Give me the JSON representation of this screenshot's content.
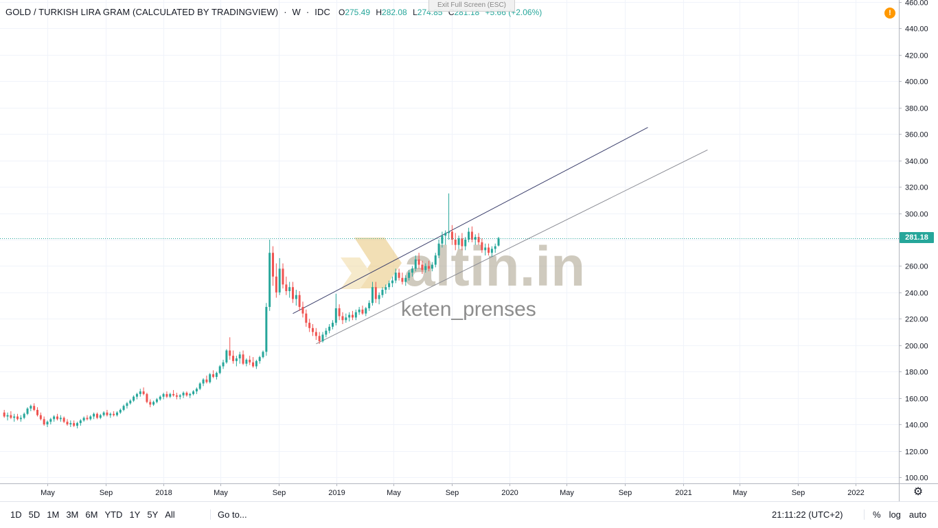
{
  "legend": {
    "symbol": "GOLD / TURKISH LIRA GRAM (CALCULATED BY TRADINGVIEW)",
    "interval": "W",
    "source": "IDC",
    "open_key": "O",
    "open": "275.49",
    "high_key": "H",
    "high": "282.08",
    "low_key": "L",
    "low": "274.85",
    "close_key": "C",
    "close": "281.18",
    "change": "+5.66 (+2.06%)"
  },
  "exit_fullscreen": "Exit Full Screen (ESC)",
  "alert_icon_char": "!",
  "watermark": {
    "brand": "altin.in",
    "user": "keten_prenses"
  },
  "last_price_label": "281.18",
  "colors": {
    "up": "#26a69a",
    "down": "#ef5350",
    "grid": "#f0f3fa",
    "axis": "#b2b5be"
  },
  "bottom": {
    "ranges": [
      "1D",
      "5D",
      "1M",
      "3M",
      "6M",
      "YTD",
      "1Y",
      "5Y",
      "All"
    ],
    "goto": "Go to...",
    "clock": "21:11:22 (UTC+2)",
    "options": [
      "%",
      "log",
      "auto"
    ]
  },
  "chart_data": {
    "type": "candlestick",
    "title": "GOLD / TURKISH LIRA GRAM (CALCULATED BY TRADINGVIEW)",
    "interval": "W",
    "ylim": [
      100,
      460
    ],
    "y_ticks": [
      100,
      120,
      140,
      160,
      180,
      200,
      220,
      240,
      260,
      280,
      300,
      320,
      340,
      360,
      380,
      400,
      420,
      440,
      460
    ],
    "y_tick_labels": [
      "100.00",
      "120.00",
      "140.00",
      "160.00",
      "180.00",
      "200.00",
      "220.00",
      "240.00",
      "260.00",
      "280.00",
      "300.00",
      "320.00",
      "340.00",
      "360.00",
      "380.00",
      "400.00",
      "420.00",
      "440.00",
      "460.00"
    ],
    "x_tick_labels": [
      "May",
      "Sep",
      "2018",
      "May",
      "Sep",
      "2019",
      "May",
      "Sep",
      "2020",
      "May",
      "Sep",
      "2021",
      "May",
      "Sep",
      "2022"
    ],
    "x_tick_dates": [
      "2017-05-01",
      "2017-09-01",
      "2018-01-01",
      "2018-05-01",
      "2018-09-01",
      "2019-01-01",
      "2019-05-01",
      "2019-09-01",
      "2020-01-01",
      "2020-05-01",
      "2020-09-01",
      "2021-01-01",
      "2021-05-01",
      "2021-09-01",
      "2022-01-01"
    ],
    "last_price": 281.18,
    "candles": [
      {
        "d": "2017-01-30",
        "o": 149,
        "h": 151,
        "l": 145,
        "c": 146
      },
      {
        "d": "2017-02-06",
        "o": 146,
        "h": 149,
        "l": 143,
        "c": 147
      },
      {
        "d": "2017-02-13",
        "o": 147,
        "h": 150,
        "l": 144,
        "c": 145
      },
      {
        "d": "2017-02-20",
        "o": 145,
        "h": 148,
        "l": 142,
        "c": 146
      },
      {
        "d": "2017-02-27",
        "o": 146,
        "h": 148,
        "l": 143,
        "c": 144
      },
      {
        "d": "2017-03-06",
        "o": 144,
        "h": 147,
        "l": 142,
        "c": 145
      },
      {
        "d": "2017-03-13",
        "o": 145,
        "h": 149,
        "l": 144,
        "c": 148
      },
      {
        "d": "2017-03-20",
        "o": 148,
        "h": 153,
        "l": 147,
        "c": 152
      },
      {
        "d": "2017-03-27",
        "o": 152,
        "h": 155,
        "l": 150,
        "c": 154
      },
      {
        "d": "2017-04-03",
        "o": 154,
        "h": 156,
        "l": 150,
        "c": 151
      },
      {
        "d": "2017-04-10",
        "o": 151,
        "h": 153,
        "l": 146,
        "c": 147
      },
      {
        "d": "2017-04-17",
        "o": 147,
        "h": 149,
        "l": 143,
        "c": 144
      },
      {
        "d": "2017-04-24",
        "o": 144,
        "h": 146,
        "l": 139,
        "c": 140
      },
      {
        "d": "2017-05-01",
        "o": 140,
        "h": 143,
        "l": 138,
        "c": 142
      },
      {
        "d": "2017-05-08",
        "o": 142,
        "h": 145,
        "l": 140,
        "c": 144
      },
      {
        "d": "2017-05-15",
        "o": 144,
        "h": 147,
        "l": 142,
        "c": 146
      },
      {
        "d": "2017-05-22",
        "o": 146,
        "h": 148,
        "l": 143,
        "c": 144
      },
      {
        "d": "2017-05-29",
        "o": 144,
        "h": 147,
        "l": 142,
        "c": 145
      },
      {
        "d": "2017-06-05",
        "o": 145,
        "h": 146,
        "l": 141,
        "c": 142
      },
      {
        "d": "2017-06-12",
        "o": 142,
        "h": 144,
        "l": 139,
        "c": 140
      },
      {
        "d": "2017-06-19",
        "o": 140,
        "h": 143,
        "l": 138,
        "c": 141
      },
      {
        "d": "2017-06-26",
        "o": 141,
        "h": 143,
        "l": 138,
        "c": 139
      },
      {
        "d": "2017-07-03",
        "o": 139,
        "h": 142,
        "l": 137,
        "c": 141
      },
      {
        "d": "2017-07-10",
        "o": 141,
        "h": 144,
        "l": 139,
        "c": 143
      },
      {
        "d": "2017-07-17",
        "o": 143,
        "h": 146,
        "l": 142,
        "c": 145
      },
      {
        "d": "2017-07-24",
        "o": 145,
        "h": 147,
        "l": 143,
        "c": 144
      },
      {
        "d": "2017-07-31",
        "o": 144,
        "h": 147,
        "l": 143,
        "c": 146
      },
      {
        "d": "2017-08-07",
        "o": 146,
        "h": 149,
        "l": 144,
        "c": 148
      },
      {
        "d": "2017-08-14",
        "o": 148,
        "h": 149,
        "l": 144,
        "c": 145
      },
      {
        "d": "2017-08-21",
        "o": 145,
        "h": 148,
        "l": 144,
        "c": 147
      },
      {
        "d": "2017-08-28",
        "o": 147,
        "h": 150,
        "l": 146,
        "c": 149
      },
      {
        "d": "2017-09-04",
        "o": 149,
        "h": 151,
        "l": 146,
        "c": 147
      },
      {
        "d": "2017-09-11",
        "o": 147,
        "h": 149,
        "l": 145,
        "c": 148
      },
      {
        "d": "2017-09-18",
        "o": 148,
        "h": 150,
        "l": 146,
        "c": 147
      },
      {
        "d": "2017-09-25",
        "o": 147,
        "h": 150,
        "l": 146,
        "c": 149
      },
      {
        "d": "2017-10-02",
        "o": 149,
        "h": 152,
        "l": 148,
        "c": 151
      },
      {
        "d": "2017-10-09",
        "o": 151,
        "h": 155,
        "l": 150,
        "c": 154
      },
      {
        "d": "2017-10-16",
        "o": 154,
        "h": 157,
        "l": 152,
        "c": 156
      },
      {
        "d": "2017-10-23",
        "o": 156,
        "h": 159,
        "l": 155,
        "c": 158
      },
      {
        "d": "2017-10-30",
        "o": 158,
        "h": 162,
        "l": 157,
        "c": 161
      },
      {
        "d": "2017-11-06",
        "o": 161,
        "h": 164,
        "l": 159,
        "c": 163
      },
      {
        "d": "2017-11-13",
        "o": 163,
        "h": 167,
        "l": 161,
        "c": 165
      },
      {
        "d": "2017-11-20",
        "o": 165,
        "h": 168,
        "l": 162,
        "c": 163
      },
      {
        "d": "2017-11-27",
        "o": 163,
        "h": 164,
        "l": 156,
        "c": 157
      },
      {
        "d": "2017-12-04",
        "o": 157,
        "h": 159,
        "l": 153,
        "c": 155
      },
      {
        "d": "2017-12-11",
        "o": 155,
        "h": 158,
        "l": 154,
        "c": 157
      },
      {
        "d": "2017-12-18",
        "o": 157,
        "h": 160,
        "l": 156,
        "c": 159
      },
      {
        "d": "2017-12-25",
        "o": 159,
        "h": 162,
        "l": 158,
        "c": 161
      },
      {
        "d": "2018-01-01",
        "o": 161,
        "h": 164,
        "l": 159,
        "c": 163
      },
      {
        "d": "2018-01-08",
        "o": 163,
        "h": 165,
        "l": 160,
        "c": 161
      },
      {
        "d": "2018-01-15",
        "o": 161,
        "h": 164,
        "l": 160,
        "c": 163
      },
      {
        "d": "2018-01-22",
        "o": 163,
        "h": 166,
        "l": 161,
        "c": 162
      },
      {
        "d": "2018-01-29",
        "o": 162,
        "h": 164,
        "l": 159,
        "c": 161
      },
      {
        "d": "2018-02-05",
        "o": 161,
        "h": 163,
        "l": 159,
        "c": 162
      },
      {
        "d": "2018-02-12",
        "o": 162,
        "h": 165,
        "l": 160,
        "c": 164
      },
      {
        "d": "2018-02-19",
        "o": 164,
        "h": 165,
        "l": 161,
        "c": 162
      },
      {
        "d": "2018-02-26",
        "o": 162,
        "h": 164,
        "l": 160,
        "c": 163
      },
      {
        "d": "2018-03-05",
        "o": 163,
        "h": 166,
        "l": 162,
        "c": 165
      },
      {
        "d": "2018-03-12",
        "o": 165,
        "h": 168,
        "l": 163,
        "c": 167
      },
      {
        "d": "2018-03-19",
        "o": 167,
        "h": 172,
        "l": 166,
        "c": 171
      },
      {
        "d": "2018-03-26",
        "o": 171,
        "h": 175,
        "l": 169,
        "c": 174
      },
      {
        "d": "2018-04-02",
        "o": 174,
        "h": 177,
        "l": 171,
        "c": 172
      },
      {
        "d": "2018-04-09",
        "o": 172,
        "h": 179,
        "l": 171,
        "c": 178
      },
      {
        "d": "2018-04-16",
        "o": 178,
        "h": 181,
        "l": 175,
        "c": 176
      },
      {
        "d": "2018-04-23",
        "o": 176,
        "h": 180,
        "l": 174,
        "c": 179
      },
      {
        "d": "2018-04-30",
        "o": 179,
        "h": 185,
        "l": 178,
        "c": 184
      },
      {
        "d": "2018-05-07",
        "o": 184,
        "h": 189,
        "l": 182,
        "c": 187
      },
      {
        "d": "2018-05-14",
        "o": 187,
        "h": 197,
        "l": 186,
        "c": 196
      },
      {
        "d": "2018-05-21",
        "o": 196,
        "h": 206,
        "l": 189,
        "c": 192
      },
      {
        "d": "2018-05-28",
        "o": 192,
        "h": 196,
        "l": 186,
        "c": 188
      },
      {
        "d": "2018-06-04",
        "o": 188,
        "h": 192,
        "l": 184,
        "c": 190
      },
      {
        "d": "2018-06-11",
        "o": 190,
        "h": 195,
        "l": 186,
        "c": 193
      },
      {
        "d": "2018-06-18",
        "o": 193,
        "h": 196,
        "l": 185,
        "c": 186
      },
      {
        "d": "2018-06-25",
        "o": 186,
        "h": 190,
        "l": 184,
        "c": 189
      },
      {
        "d": "2018-07-02",
        "o": 189,
        "h": 192,
        "l": 185,
        "c": 187
      },
      {
        "d": "2018-07-09",
        "o": 187,
        "h": 191,
        "l": 183,
        "c": 184
      },
      {
        "d": "2018-07-16",
        "o": 184,
        "h": 189,
        "l": 182,
        "c": 188
      },
      {
        "d": "2018-07-23",
        "o": 188,
        "h": 192,
        "l": 186,
        "c": 191
      },
      {
        "d": "2018-07-30",
        "o": 191,
        "h": 196,
        "l": 190,
        "c": 195
      },
      {
        "d": "2018-08-06",
        "o": 195,
        "h": 232,
        "l": 192,
        "c": 229
      },
      {
        "d": "2018-08-13",
        "o": 229,
        "h": 280,
        "l": 226,
        "c": 270
      },
      {
        "d": "2018-08-20",
        "o": 270,
        "h": 275,
        "l": 245,
        "c": 252
      },
      {
        "d": "2018-08-27",
        "o": 252,
        "h": 262,
        "l": 236,
        "c": 240
      },
      {
        "d": "2018-09-03",
        "o": 240,
        "h": 266,
        "l": 238,
        "c": 258
      },
      {
        "d": "2018-09-10",
        "o": 258,
        "h": 262,
        "l": 243,
        "c": 246
      },
      {
        "d": "2018-09-17",
        "o": 246,
        "h": 252,
        "l": 238,
        "c": 241
      },
      {
        "d": "2018-09-24",
        "o": 241,
        "h": 248,
        "l": 236,
        "c": 244
      },
      {
        "d": "2018-10-01",
        "o": 244,
        "h": 248,
        "l": 232,
        "c": 235
      },
      {
        "d": "2018-10-08",
        "o": 235,
        "h": 242,
        "l": 230,
        "c": 238
      },
      {
        "d": "2018-10-15",
        "o": 238,
        "h": 241,
        "l": 226,
        "c": 229
      },
      {
        "d": "2018-10-22",
        "o": 229,
        "h": 233,
        "l": 221,
        "c": 224
      },
      {
        "d": "2018-10-29",
        "o": 224,
        "h": 227,
        "l": 214,
        "c": 217
      },
      {
        "d": "2018-11-05",
        "o": 217,
        "h": 220,
        "l": 210,
        "c": 213
      },
      {
        "d": "2018-11-12",
        "o": 213,
        "h": 216,
        "l": 207,
        "c": 210
      },
      {
        "d": "2018-11-19",
        "o": 210,
        "h": 213,
        "l": 204,
        "c": 207
      },
      {
        "d": "2018-11-26",
        "o": 207,
        "h": 210,
        "l": 201,
        "c": 203
      },
      {
        "d": "2018-12-03",
        "o": 203,
        "h": 210,
        "l": 202,
        "c": 208
      },
      {
        "d": "2018-12-10",
        "o": 208,
        "h": 213,
        "l": 206,
        "c": 211
      },
      {
        "d": "2018-12-17",
        "o": 211,
        "h": 216,
        "l": 209,
        "c": 214
      },
      {
        "d": "2018-12-24",
        "o": 214,
        "h": 219,
        "l": 212,
        "c": 217
      },
      {
        "d": "2018-12-31",
        "o": 217,
        "h": 239,
        "l": 215,
        "c": 228
      },
      {
        "d": "2019-01-07",
        "o": 228,
        "h": 231,
        "l": 219,
        "c": 222
      },
      {
        "d": "2019-01-14",
        "o": 222,
        "h": 225,
        "l": 216,
        "c": 219
      },
      {
        "d": "2019-01-21",
        "o": 219,
        "h": 224,
        "l": 217,
        "c": 221
      },
      {
        "d": "2019-01-28",
        "o": 221,
        "h": 225,
        "l": 218,
        "c": 223
      },
      {
        "d": "2019-02-04",
        "o": 223,
        "h": 226,
        "l": 219,
        "c": 221
      },
      {
        "d": "2019-02-11",
        "o": 221,
        "h": 227,
        "l": 219,
        "c": 225
      },
      {
        "d": "2019-02-18",
        "o": 225,
        "h": 229,
        "l": 223,
        "c": 227
      },
      {
        "d": "2019-02-25",
        "o": 227,
        "h": 230,
        "l": 223,
        "c": 224
      },
      {
        "d": "2019-03-04",
        "o": 224,
        "h": 229,
        "l": 222,
        "c": 228
      },
      {
        "d": "2019-03-11",
        "o": 228,
        "h": 234,
        "l": 226,
        "c": 232
      },
      {
        "d": "2019-03-18",
        "o": 232,
        "h": 248,
        "l": 230,
        "c": 244
      },
      {
        "d": "2019-03-25",
        "o": 244,
        "h": 248,
        "l": 232,
        "c": 235
      },
      {
        "d": "2019-04-01",
        "o": 235,
        "h": 240,
        "l": 231,
        "c": 238
      },
      {
        "d": "2019-04-08",
        "o": 238,
        "h": 244,
        "l": 236,
        "c": 242
      },
      {
        "d": "2019-04-15",
        "o": 242,
        "h": 246,
        "l": 239,
        "c": 244
      },
      {
        "d": "2019-04-22",
        "o": 244,
        "h": 249,
        "l": 242,
        "c": 247
      },
      {
        "d": "2019-04-29",
        "o": 247,
        "h": 252,
        "l": 244,
        "c": 249
      },
      {
        "d": "2019-05-06",
        "o": 249,
        "h": 258,
        "l": 247,
        "c": 255
      },
      {
        "d": "2019-05-13",
        "o": 255,
        "h": 258,
        "l": 249,
        "c": 251
      },
      {
        "d": "2019-05-20",
        "o": 251,
        "h": 255,
        "l": 246,
        "c": 248
      },
      {
        "d": "2019-05-27",
        "o": 248,
        "h": 253,
        "l": 245,
        "c": 251
      },
      {
        "d": "2019-06-03",
        "o": 251,
        "h": 257,
        "l": 249,
        "c": 255
      },
      {
        "d": "2019-06-10",
        "o": 255,
        "h": 260,
        "l": 252,
        "c": 258
      },
      {
        "d": "2019-06-17",
        "o": 258,
        "h": 268,
        "l": 256,
        "c": 265
      },
      {
        "d": "2019-06-24",
        "o": 265,
        "h": 270,
        "l": 258,
        "c": 261
      },
      {
        "d": "2019-07-01",
        "o": 261,
        "h": 264,
        "l": 254,
        "c": 257
      },
      {
        "d": "2019-07-08",
        "o": 257,
        "h": 262,
        "l": 255,
        "c": 260
      },
      {
        "d": "2019-07-15",
        "o": 260,
        "h": 264,
        "l": 256,
        "c": 258
      },
      {
        "d": "2019-07-22",
        "o": 258,
        "h": 263,
        "l": 256,
        "c": 261
      },
      {
        "d": "2019-07-29",
        "o": 261,
        "h": 270,
        "l": 259,
        "c": 268
      },
      {
        "d": "2019-08-05",
        "o": 268,
        "h": 280,
        "l": 266,
        "c": 277
      },
      {
        "d": "2019-08-12",
        "o": 277,
        "h": 286,
        "l": 274,
        "c": 283
      },
      {
        "d": "2019-08-19",
        "o": 283,
        "h": 287,
        "l": 276,
        "c": 285
      },
      {
        "d": "2019-08-26",
        "o": 285,
        "h": 315,
        "l": 280,
        "c": 286
      },
      {
        "d": "2019-09-02",
        "o": 286,
        "h": 291,
        "l": 276,
        "c": 280
      },
      {
        "d": "2019-09-09",
        "o": 280,
        "h": 285,
        "l": 272,
        "c": 276
      },
      {
        "d": "2019-09-16",
        "o": 276,
        "h": 283,
        "l": 273,
        "c": 281
      },
      {
        "d": "2019-09-23",
        "o": 281,
        "h": 285,
        "l": 272,
        "c": 275
      },
      {
        "d": "2019-09-30",
        "o": 275,
        "h": 282,
        "l": 272,
        "c": 280
      },
      {
        "d": "2019-10-07",
        "o": 280,
        "h": 289,
        "l": 278,
        "c": 286
      },
      {
        "d": "2019-10-14",
        "o": 286,
        "h": 290,
        "l": 278,
        "c": 280
      },
      {
        "d": "2019-10-21",
        "o": 280,
        "h": 284,
        "l": 276,
        "c": 282
      },
      {
        "d": "2019-10-28",
        "o": 282,
        "h": 285,
        "l": 276,
        "c": 278
      },
      {
        "d": "2019-11-04",
        "o": 278,
        "h": 281,
        "l": 270,
        "c": 272
      },
      {
        "d": "2019-11-11",
        "o": 272,
        "h": 277,
        "l": 268,
        "c": 274
      },
      {
        "d": "2019-11-18",
        "o": 274,
        "h": 277,
        "l": 268,
        "c": 270
      },
      {
        "d": "2019-11-25",
        "o": 270,
        "h": 275,
        "l": 267,
        "c": 273
      },
      {
        "d": "2019-12-02",
        "o": 273,
        "h": 277,
        "l": 270,
        "c": 275
      },
      {
        "d": "2019-12-09",
        "o": 275.49,
        "h": 282.08,
        "l": 274.85,
        "c": 281.18
      }
    ],
    "trendlines": [
      {
        "x1": "2018-10-01",
        "y1": 224,
        "x2": "2020-10-19",
        "y2": 365
      },
      {
        "x1": "2018-11-19",
        "y1": 201,
        "x2": "2021-02-22",
        "y2": 348
      }
    ]
  }
}
